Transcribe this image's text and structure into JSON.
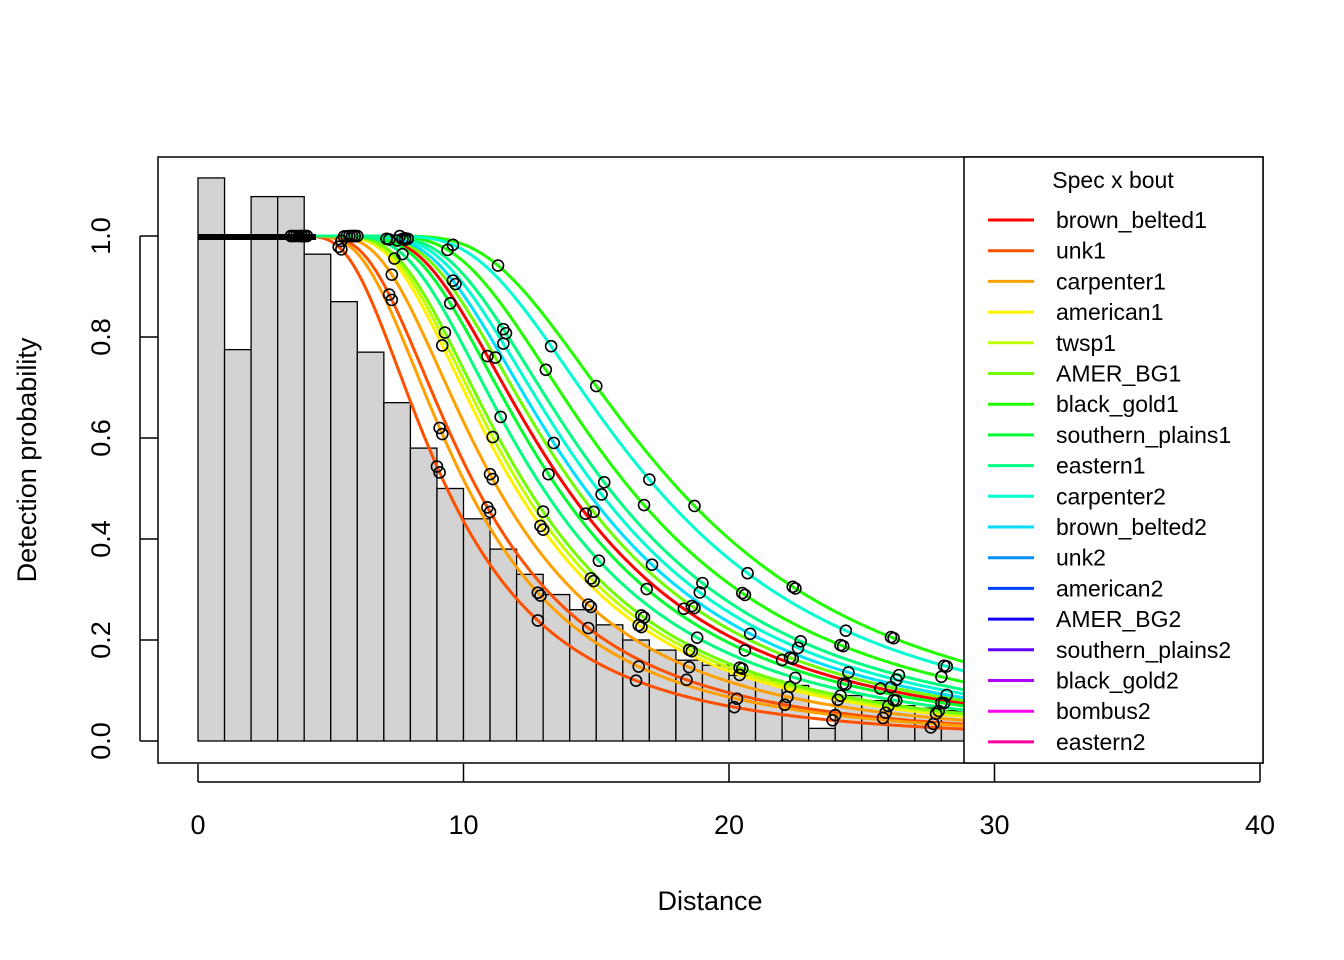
{
  "chart_data": {
    "type": "line",
    "xlabel": "Distance",
    "ylabel": "Detection probability",
    "xlim": [
      0,
      40
    ],
    "ylim": [
      0,
      1.12
    ],
    "x_ticks": [
      "0",
      "10",
      "20",
      "30",
      "40"
    ],
    "y_ticks": [
      "0.0",
      "0.2",
      "0.4",
      "0.6",
      "0.8",
      "1.0"
    ],
    "histogram": {
      "bin_width": 1,
      "heights": [
        1.115,
        0.775,
        1.078,
        1.078,
        0.964,
        0.87,
        0.77,
        0.67,
        0.58,
        0.5,
        0.44,
        0.38,
        0.33,
        0.29,
        0.26,
        0.23,
        0.2,
        0.18,
        0.16,
        0.15,
        0.13,
        0.12,
        0.11,
        0.025,
        0.09,
        0.08,
        0.07,
        0.065,
        0.06,
        0.055
      ]
    },
    "legend": {
      "title": "Spec x bout",
      "position": "right",
      "entries": [
        {
          "name": "brown_belted1",
          "color": "#FF0000"
        },
        {
          "name": "unk1",
          "color": "#FF5000"
        },
        {
          "name": "carpenter1",
          "color": "#FFA000"
        },
        {
          "name": "american1",
          "color": "#FFF000"
        },
        {
          "name": "twsp1",
          "color": "#BFFF00"
        },
        {
          "name": "AMER_BG1",
          "color": "#6FFF00"
        },
        {
          "name": "black_gold1",
          "color": "#20FF00"
        },
        {
          "name": "southern_plains1",
          "color": "#00FF30"
        },
        {
          "name": "eastern1",
          "color": "#00FF80"
        },
        {
          "name": "carpenter2",
          "color": "#00FFD0"
        },
        {
          "name": "brown_belted2",
          "color": "#00DFFF"
        },
        {
          "name": "unk2",
          "color": "#0090FF"
        },
        {
          "name": "american2",
          "color": "#0040FF"
        },
        {
          "name": "AMER_BG2",
          "color": "#1000FF"
        },
        {
          "name": "southern_plains2",
          "color": "#6000FF"
        },
        {
          "name": "black_gold2",
          "color": "#B000FF"
        },
        {
          "name": "bombus2",
          "color": "#FF00F0"
        },
        {
          "name": "eastern2",
          "color": "#FF00A0"
        }
      ]
    },
    "series": [
      {
        "color": "#FF0000",
        "sigma": 12.3
      },
      {
        "color": "#FF5000",
        "sigma": 8.3
      },
      {
        "color": "#FF5000",
        "sigma": 9.3
      },
      {
        "color": "#FFA000",
        "sigma": 9.0
      },
      {
        "color": "#FFA000",
        "sigma": 10.0
      },
      {
        "color": "#FFF000",
        "sigma": 10.6
      },
      {
        "color": "#BFFF00",
        "sigma": 10.8
      },
      {
        "color": "#6FFF00",
        "sigma": 11.0
      },
      {
        "color": "#6FFF00",
        "sigma": 12.6
      },
      {
        "color": "#20FF00",
        "sigma": 14.4
      },
      {
        "color": "#20FF00",
        "sigma": 16.0
      },
      {
        "color": "#00FF30",
        "sigma": 12.0
      },
      {
        "color": "#00FF80",
        "sigma": 11.5
      },
      {
        "color": "#00FFD0",
        "sigma": 15.3
      },
      {
        "color": "#00FFD0",
        "sigma": 13.3
      },
      {
        "color": "#00DFFF",
        "sigma": 12.9
      },
      {
        "color": "#00FF80",
        "sigma": 13.7
      }
    ]
  }
}
